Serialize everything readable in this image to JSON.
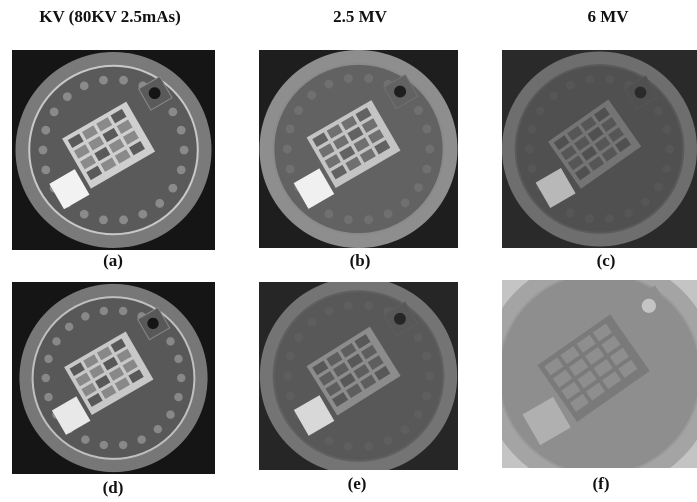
{
  "columns": [
    "KV (80KV 2.5mAs)",
    "2.5 MV",
    "6 MV"
  ],
  "panels": [
    {
      "label": "(a)"
    },
    {
      "label": "(b)"
    },
    {
      "label": "(c)"
    },
    {
      "label": "(d)"
    },
    {
      "label": "(e)"
    },
    {
      "label": "(f)"
    }
  ]
}
